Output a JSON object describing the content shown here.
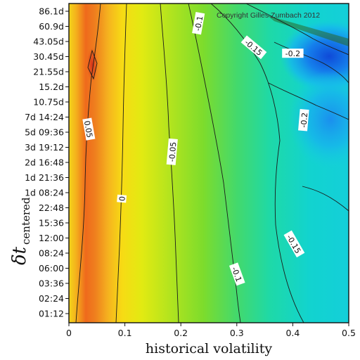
{
  "chart_data": {
    "type": "heatmap",
    "title": "",
    "copyright": "Copyright Gilles Zumbach 2012",
    "xlabel": "historical volatility",
    "ylabel_main": "δt",
    "ylabel_sub": "centered",
    "xlim": [
      0,
      0.5
    ],
    "x_ticks": [
      "0",
      "0.1",
      "0.2",
      "0.3",
      "0.4",
      "0.5"
    ],
    "y_ticks": [
      "01:12",
      "02:24",
      "03:36",
      "06:00",
      "08:24",
      "12:00",
      "15:36",
      "22:48",
      "1d 08:24",
      "1d 21:36",
      "2d 16:48",
      "3d 19:12",
      "5d 09:36",
      "7d 14:24",
      "10.75d",
      "15.2d",
      "21.55d",
      "30.45d",
      "43.05d",
      "60.9d",
      "86.1d"
    ],
    "contour_levels": [
      {
        "level": 0.05,
        "label": "0.05"
      },
      {
        "level": 0,
        "label": "0"
      },
      {
        "level": -0.05,
        "label": "-0.05"
      },
      {
        "level": -0.1,
        "label": "-0.1"
      },
      {
        "level": -0.15,
        "label": "-0.15"
      },
      {
        "level": -0.2,
        "label": "-0.2"
      }
    ],
    "contour_labels": [
      {
        "text": "0.05",
        "x": 0.035,
        "y_index": 12.2,
        "angle": 80
      },
      {
        "text": "0",
        "x": 0.095,
        "y_index": 7.6,
        "angle": -85
      },
      {
        "text": "-0.05",
        "x": 0.185,
        "y_index": 10.7,
        "angle": -85
      },
      {
        "text": "-0.1",
        "x": 0.232,
        "y_index": 19.2,
        "angle": -80
      },
      {
        "text": "-0.1",
        "x": 0.3,
        "y_index": 2.6,
        "angle": 70
      },
      {
        "text": "-0.15",
        "x": 0.33,
        "y_index": 17.6,
        "angle": 40
      },
      {
        "text": "-0.15",
        "x": 0.402,
        "y_index": 4.6,
        "angle": 60
      },
      {
        "text": "-0.2",
        "x": 0.4,
        "y_index": 17.2,
        "angle": 0
      },
      {
        "text": "-0.2",
        "x": 0.42,
        "y_index": 12.8,
        "angle": -85
      }
    ],
    "colorscale": [
      "#d9401a",
      "#ee7a1f",
      "#f6b820",
      "#f9ee10",
      "#c4e81a",
      "#7fe32a",
      "#34e07a",
      "#14d8c8",
      "#10b8f0",
      "#1466e8"
    ]
  }
}
